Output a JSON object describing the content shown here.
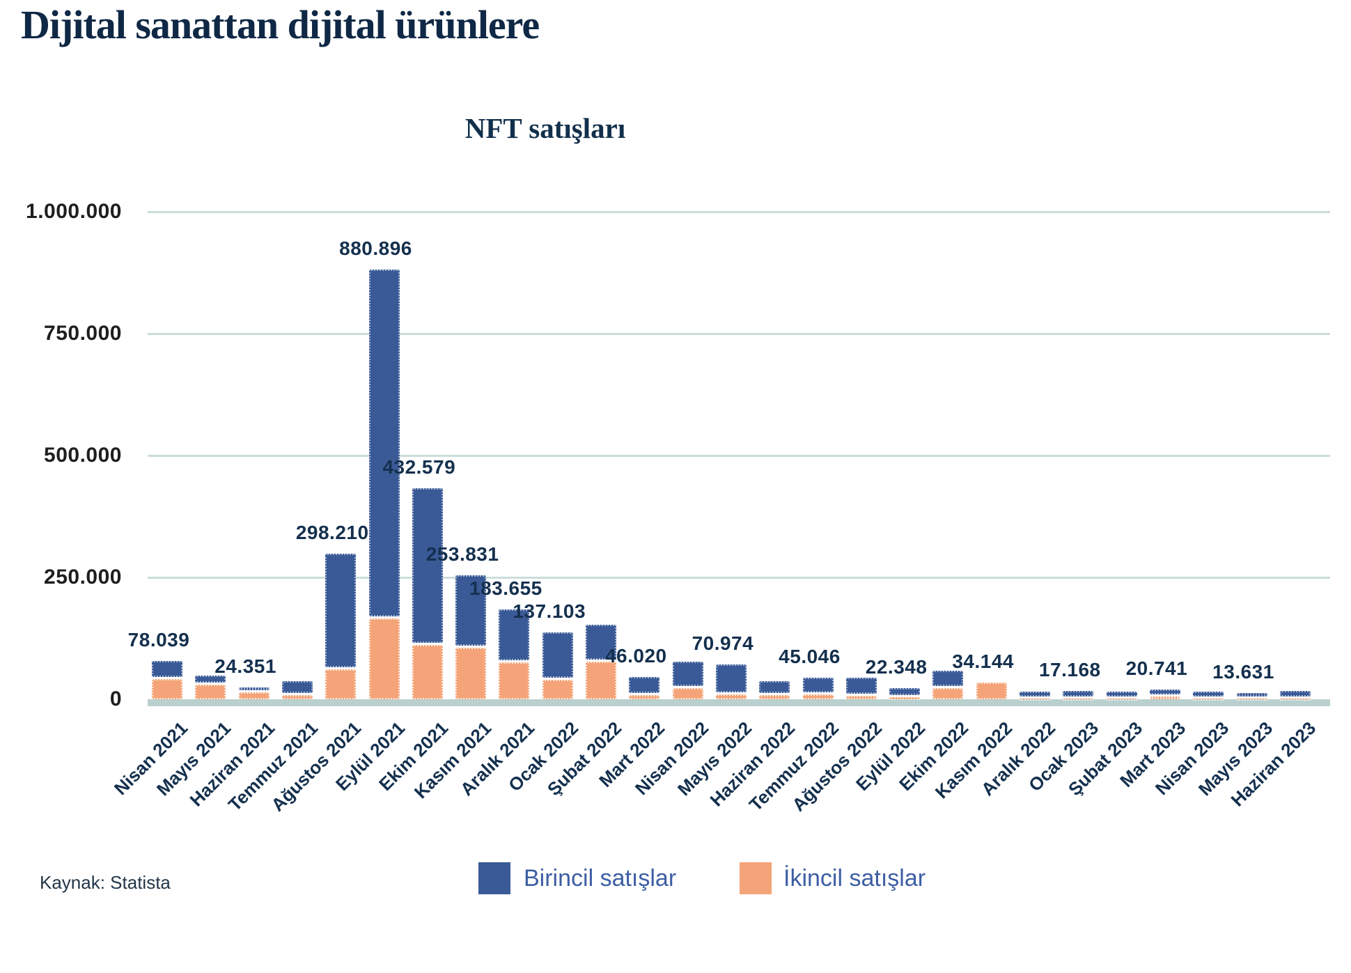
{
  "page": {
    "title": "Dijital sanattan dijital ürünlere",
    "source": "Kaynak: Statista"
  },
  "legend": [
    {
      "label": "Birincil satışlar",
      "color": "#3a5a97"
    },
    {
      "label": "İkincil satışlar",
      "color": "#f4a478"
    }
  ],
  "colors": {
    "primary_bar": "#3a5a97",
    "secondary_bar": "#f4a478",
    "gridline": "#cbdddb",
    "axis_line": "#b9d0ce",
    "label_navy": "#14304e",
    "legend_text": "#3d5ea4",
    "title_navy": "#0f2845"
  },
  "chart_data": {
    "type": "bar",
    "stacked": true,
    "title": "NFT satışları",
    "xlabel": "",
    "ylabel": "",
    "ylim": [
      0,
      1000000
    ],
    "y_ticks": [
      1000000,
      750000,
      500000,
      250000,
      0
    ],
    "y_tick_labels": [
      "1.000.000",
      "750.000",
      "500.000",
      "250.000",
      "0"
    ],
    "grid": "horizontal",
    "legend_position": "bottom",
    "categories": [
      "Nisan 2021",
      "Mayıs 2021",
      "Haziran 2021",
      "Temmuz 2021",
      "Ağustos 2021",
      "Eylül 2021",
      "Ekim 2021",
      "Kasım 2021",
      "Aralık 2021",
      "Ocak 2022",
      "Şubat 2022",
      "Mart 2022",
      "Nisan 2022",
      "Mayıs 2022",
      "Haziran 2022",
      "Temmuz 2022",
      "Ağustos 2022",
      "Eylül 2022",
      "Ekim 2022",
      "Kasım 2022",
      "Aralık 2022",
      "Ocak 2023",
      "Şubat 2023",
      "Mart 2023",
      "Nisan 2023",
      "Mayıs 2023",
      "Haziran 2023"
    ],
    "totals": [
      78039,
      48000,
      24351,
      37000,
      298210,
      880896,
      432579,
      253831,
      183655,
      137103,
      153000,
      46020,
      77000,
      70974,
      37000,
      45046,
      44000,
      22348,
      58000,
      34144,
      16000,
      17168,
      16000,
      20741,
      16000,
      13631,
      17000
    ],
    "series": [
      {
        "name": "Birincil satışlar",
        "values": [
          36039,
          18000,
          9351,
          29000,
          236210,
          714896,
          320579,
          148831,
          107655,
          97103,
          76000,
          37020,
          54000,
          60974,
          29000,
          35046,
          37000,
          18348,
          35000,
          0,
          14000,
          15168,
          14000,
          14741,
          14000,
          11631,
          15000
        ]
      },
      {
        "name": "İkincil satışlar",
        "values": [
          42000,
          30000,
          15000,
          8000,
          62000,
          166000,
          112000,
          105000,
          76000,
          40000,
          77000,
          9000,
          23000,
          10000,
          8000,
          10000,
          7000,
          4000,
          23000,
          34144,
          2000,
          2000,
          2000,
          6000,
          2000,
          2000,
          2000
        ]
      }
    ],
    "bar_labels": [
      "78.039",
      "",
      "24.351",
      "",
      "298.210",
      "880.896",
      "432.579",
      "253.831",
      "183.655",
      "137.103",
      "",
      "46.020",
      "",
      "70.974",
      "",
      "45.046",
      "",
      "22.348",
      "",
      "34.144",
      "",
      "17.168",
      "",
      "20.741",
      "",
      "13.631",
      ""
    ]
  }
}
